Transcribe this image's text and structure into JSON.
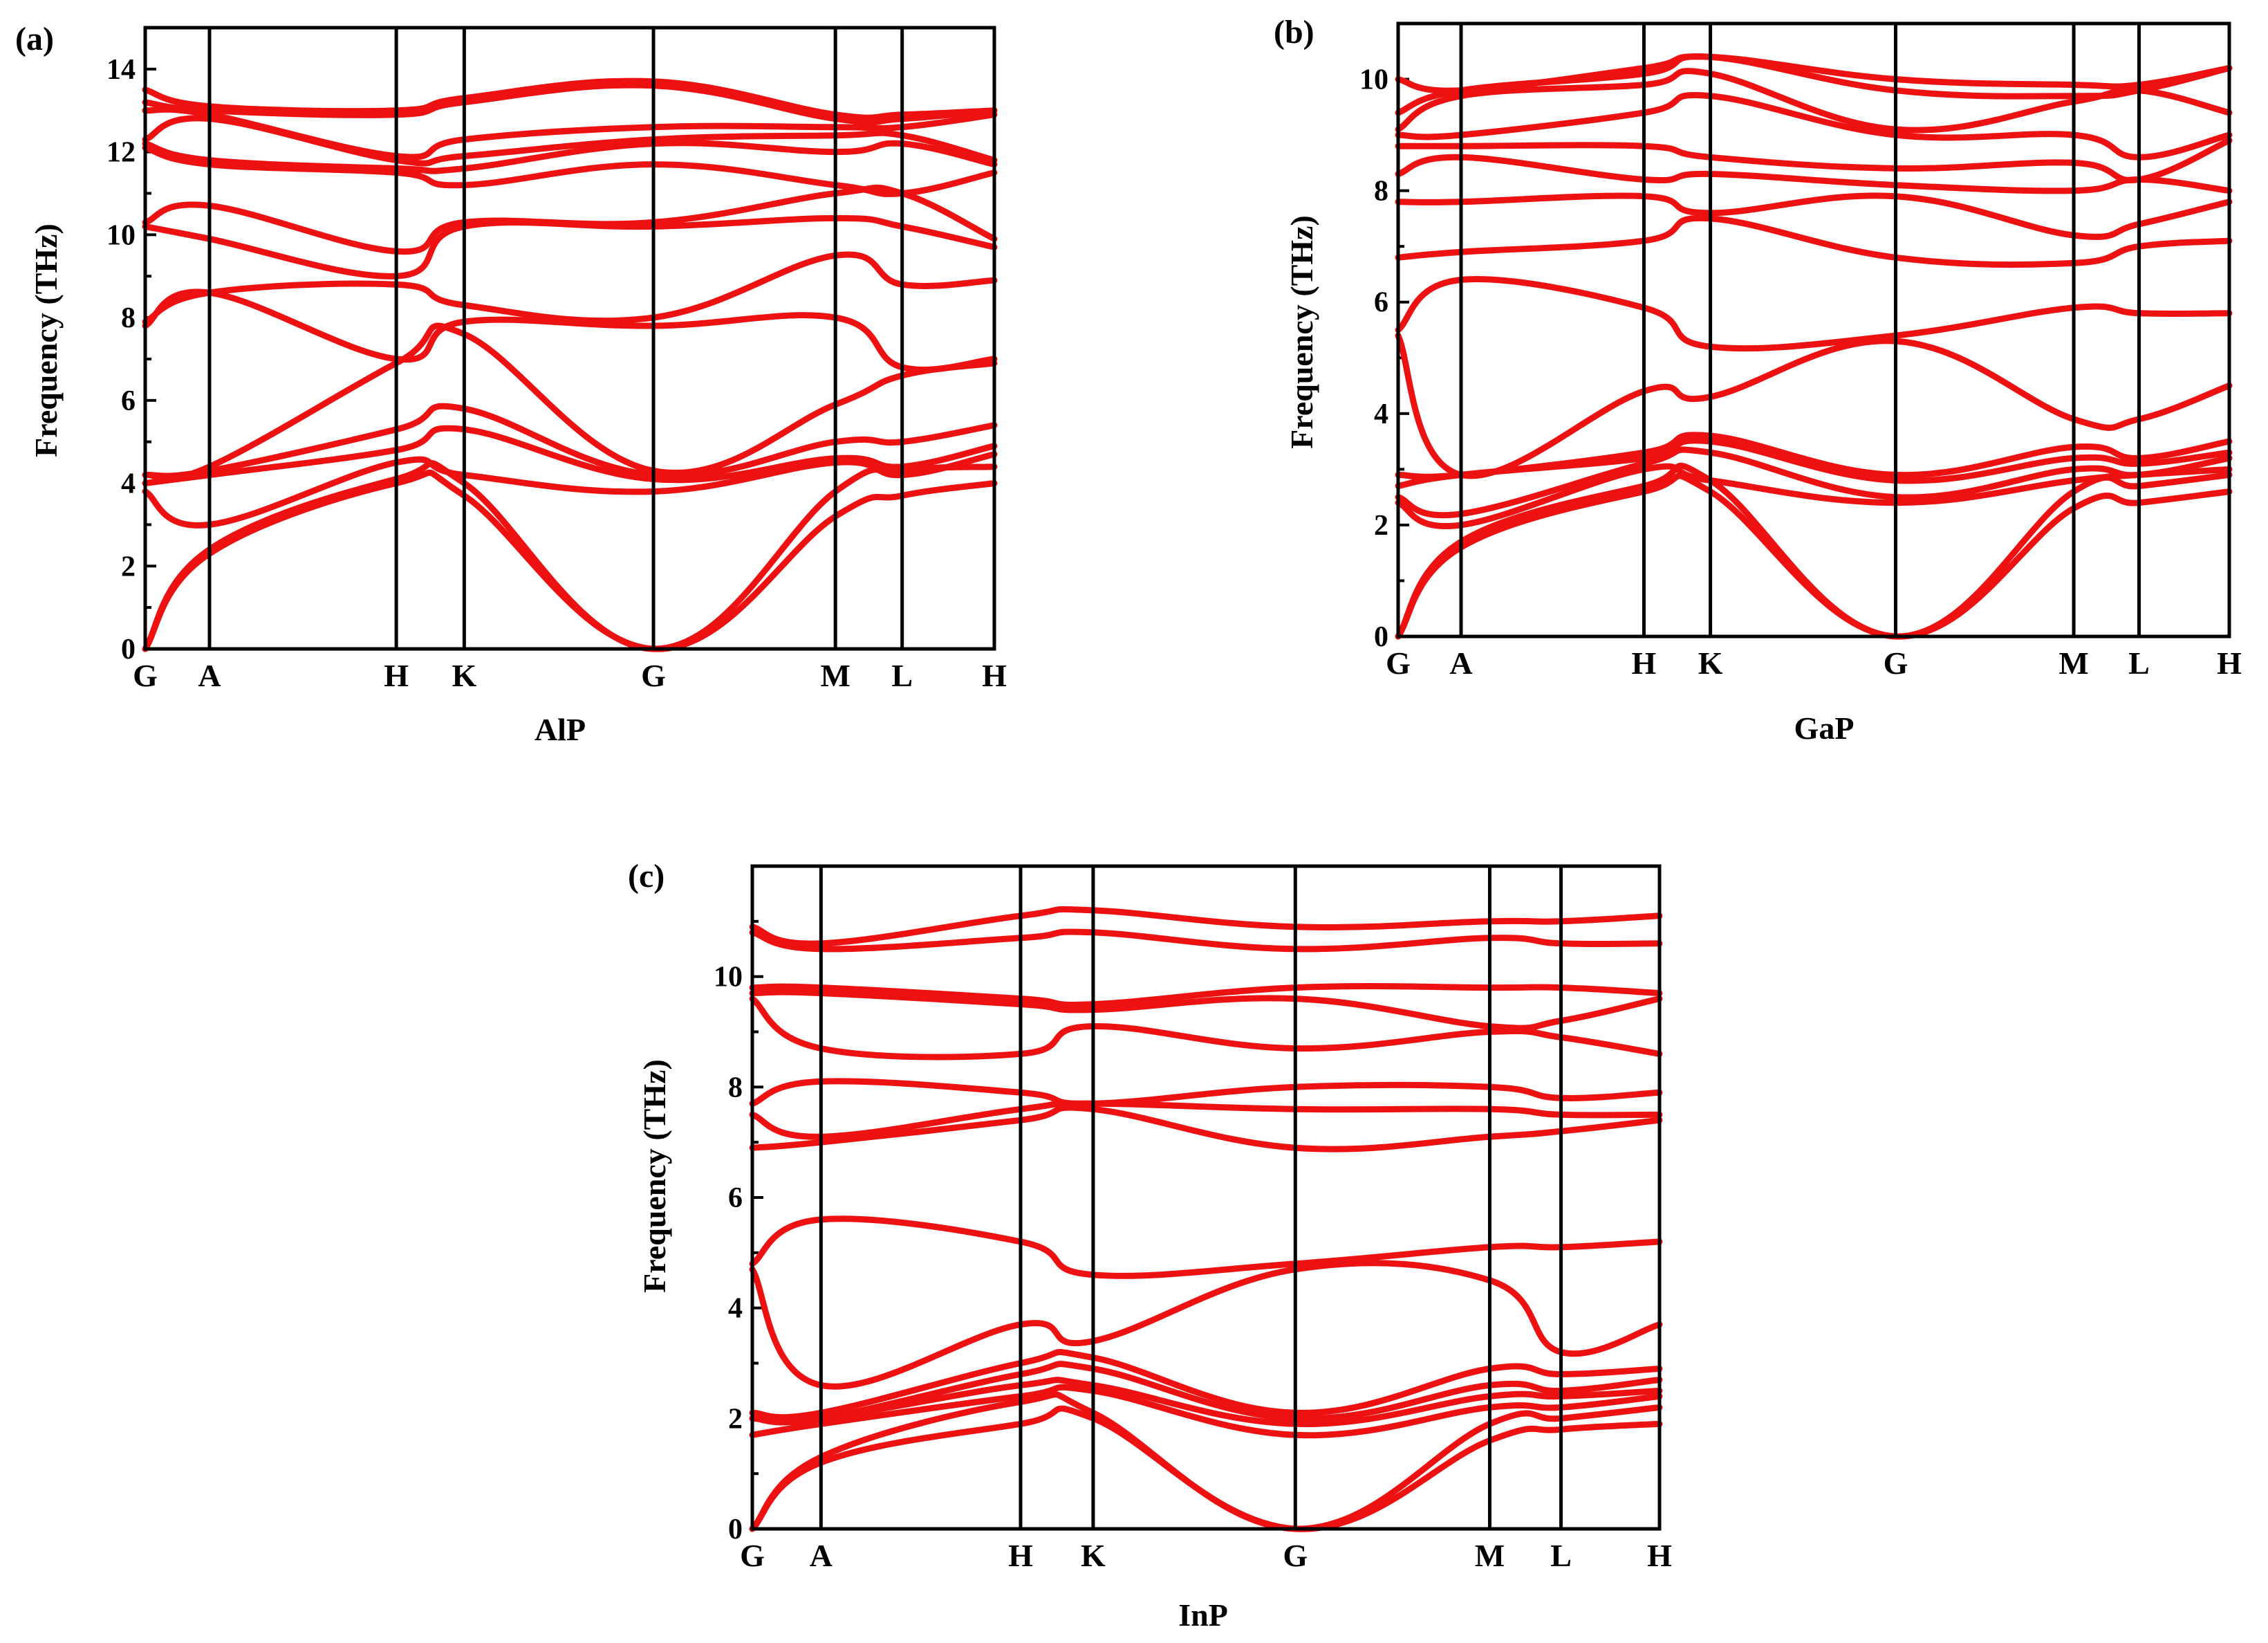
{
  "figure": {
    "background": "#ffffff",
    "band_color": "#ee1111"
  },
  "chart_data": [
    {
      "id": "a",
      "type": "line",
      "panel_label": "(a)",
      "title": "AlP",
      "xlabel": "AlP",
      "ylabel": "Frequency (THz)",
      "ylim": [
        0,
        15
      ],
      "yticks": [
        0,
        2,
        4,
        6,
        8,
        10,
        12,
        14
      ],
      "kpoints": [
        "G",
        "A",
        "H",
        "K",
        "G",
        "M",
        "L",
        "H"
      ],
      "kpoint_positions": [
        0,
        0.53,
        2.07,
        2.63,
        4.19,
        5.69,
        6.24,
        7.0
      ],
      "bands_sampled_at_kpoints": [
        [
          0,
          2.3,
          4.0,
          3.7,
          0,
          3.2,
          3.7,
          4.0
        ],
        [
          0,
          2.4,
          4.1,
          4.0,
          0,
          3.8,
          4.3,
          4.4
        ],
        [
          3.8,
          3.0,
          4.5,
          4.2,
          3.8,
          4.5,
          4.2,
          4.7
        ],
        [
          4.0,
          4.2,
          4.8,
          5.3,
          4.1,
          4.6,
          4.4,
          4.9
        ],
        [
          4.2,
          4.3,
          5.3,
          5.8,
          4.2,
          5.0,
          5.0,
          5.4
        ],
        [
          4.2,
          4.4,
          6.9,
          7.6,
          4.3,
          5.9,
          6.6,
          6.9
        ],
        [
          7.8,
          8.6,
          7.0,
          7.9,
          7.8,
          8.0,
          6.8,
          7.0
        ],
        [
          7.9,
          8.6,
          8.8,
          8.3,
          8.0,
          9.5,
          8.8,
          8.9
        ],
        [
          10.2,
          9.9,
          9.0,
          10.2,
          10.2,
          10.4,
          10.2,
          9.7
        ],
        [
          10.3,
          10.7,
          9.6,
          10.3,
          10.3,
          11.0,
          11.0,
          9.9
        ],
        [
          12.1,
          11.7,
          11.5,
          11.2,
          11.7,
          11.2,
          11.0,
          11.5
        ],
        [
          12.2,
          11.8,
          11.6,
          11.6,
          12.2,
          12.0,
          12.2,
          11.7
        ],
        [
          12.3,
          12.8,
          11.8,
          11.9,
          12.3,
          12.4,
          12.4,
          11.8
        ],
        [
          13.0,
          12.9,
          11.9,
          12.3,
          12.6,
          12.6,
          12.6,
          12.9
        ],
        [
          13.2,
          13.0,
          12.9,
          13.2,
          13.6,
          12.8,
          12.8,
          13.0
        ],
        [
          13.5,
          13.1,
          13.0,
          13.3,
          13.7,
          12.9,
          12.9,
          13.0
        ]
      ]
    },
    {
      "id": "b",
      "type": "line",
      "panel_label": "(b)",
      "title": "GaP",
      "xlabel": "GaP",
      "ylabel": "Frequency (THz)",
      "ylim": [
        0,
        11
      ],
      "yticks": [
        0,
        2,
        4,
        6,
        8,
        10
      ],
      "kpoints": [
        "G",
        "A",
        "H",
        "K",
        "G",
        "M",
        "L",
        "H"
      ],
      "kpoint_positions": [
        0,
        0.53,
        2.07,
        2.63,
        4.19,
        5.69,
        6.24,
        7.0
      ],
      "bands_sampled_at_kpoints": [
        [
          0,
          1.6,
          2.6,
          2.6,
          0,
          2.3,
          2.4,
          2.6
        ],
        [
          0,
          1.7,
          2.7,
          2.8,
          0,
          2.6,
          2.7,
          2.9
        ],
        [
          2.4,
          2.0,
          3.0,
          2.8,
          2.4,
          2.8,
          2.9,
          3.0
        ],
        [
          2.5,
          2.2,
          3.1,
          3.3,
          2.5,
          3.0,
          2.9,
          3.2
        ],
        [
          2.7,
          2.9,
          3.2,
          3.5,
          2.8,
          3.2,
          3.1,
          3.3
        ],
        [
          2.9,
          2.9,
          3.3,
          3.6,
          2.9,
          3.4,
          3.2,
          3.5
        ],
        [
          5.4,
          2.9,
          4.4,
          4.3,
          5.3,
          3.9,
          3.9,
          4.5
        ],
        [
          5.5,
          6.4,
          5.9,
          5.2,
          5.4,
          5.9,
          5.8,
          5.8
        ],
        [
          6.8,
          6.9,
          7.1,
          7.5,
          6.8,
          6.7,
          7.0,
          7.1
        ],
        [
          7.8,
          7.8,
          7.9,
          7.6,
          7.9,
          7.2,
          7.4,
          7.8
        ],
        [
          8.3,
          8.6,
          8.2,
          8.3,
          8.1,
          8.0,
          8.2,
          8.0
        ],
        [
          8.8,
          8.8,
          8.8,
          8.6,
          8.4,
          8.5,
          8.2,
          8.9
        ],
        [
          9.0,
          9.0,
          9.4,
          9.7,
          9.0,
          9.0,
          8.6,
          9.0
        ],
        [
          9.1,
          9.7,
          9.9,
          10.1,
          9.1,
          9.6,
          9.8,
          9.4
        ],
        [
          9.4,
          9.8,
          10.1,
          10.4,
          9.8,
          9.7,
          9.8,
          10.2
        ],
        [
          10.0,
          9.8,
          10.2,
          10.4,
          10.0,
          9.9,
          9.9,
          10.2
        ]
      ]
    },
    {
      "id": "c",
      "type": "line",
      "panel_label": "(c)",
      "title": "InP",
      "xlabel": "InP",
      "ylabel": "Frequency (THz)",
      "ylim": [
        0,
        12
      ],
      "yticks": [
        0,
        2,
        4,
        6,
        8,
        10
      ],
      "kpoints": [
        "G",
        "A",
        "H",
        "K",
        "G",
        "M",
        "L",
        "H"
      ],
      "kpoint_positions": [
        0,
        0.53,
        2.07,
        2.63,
        4.19,
        5.69,
        6.24,
        7.0
      ],
      "bands_sampled_at_kpoints": [
        [
          0,
          1.2,
          1.9,
          2.0,
          0,
          1.6,
          1.8,
          1.9
        ],
        [
          0,
          1.3,
          2.3,
          2.1,
          0,
          1.9,
          2.0,
          2.2
        ],
        [
          1.7,
          1.9,
          2.4,
          2.5,
          1.7,
          2.2,
          2.2,
          2.4
        ],
        [
          2.0,
          2.0,
          2.6,
          2.6,
          1.9,
          2.4,
          2.4,
          2.5
        ],
        [
          2.0,
          2.0,
          2.8,
          2.9,
          2.0,
          2.6,
          2.5,
          2.7
        ],
        [
          2.1,
          2.1,
          3.0,
          3.1,
          2.1,
          2.9,
          2.8,
          2.9
        ],
        [
          4.7,
          2.6,
          3.7,
          3.4,
          4.7,
          4.5,
          3.2,
          3.7
        ],
        [
          4.8,
          5.6,
          5.2,
          4.6,
          4.8,
          5.1,
          5.1,
          5.2
        ],
        [
          6.9,
          7.0,
          7.4,
          7.6,
          6.9,
          7.1,
          7.2,
          7.4
        ],
        [
          7.5,
          7.1,
          7.6,
          7.7,
          7.6,
          7.6,
          7.5,
          7.5
        ],
        [
          7.7,
          8.1,
          7.9,
          7.7,
          8.0,
          8.0,
          7.8,
          7.9
        ],
        [
          9.6,
          8.7,
          8.6,
          9.1,
          8.7,
          9.0,
          8.9,
          8.6
        ],
        [
          9.7,
          9.7,
          9.5,
          9.4,
          9.6,
          9.1,
          9.2,
          9.6
        ],
        [
          9.8,
          9.8,
          9.6,
          9.5,
          9.8,
          9.8,
          9.8,
          9.7
        ],
        [
          10.8,
          10.5,
          10.7,
          10.8,
          10.5,
          10.7,
          10.6,
          10.6
        ],
        [
          10.9,
          10.6,
          11.1,
          11.2,
          10.9,
          11.0,
          11.0,
          11.1
        ]
      ]
    }
  ]
}
